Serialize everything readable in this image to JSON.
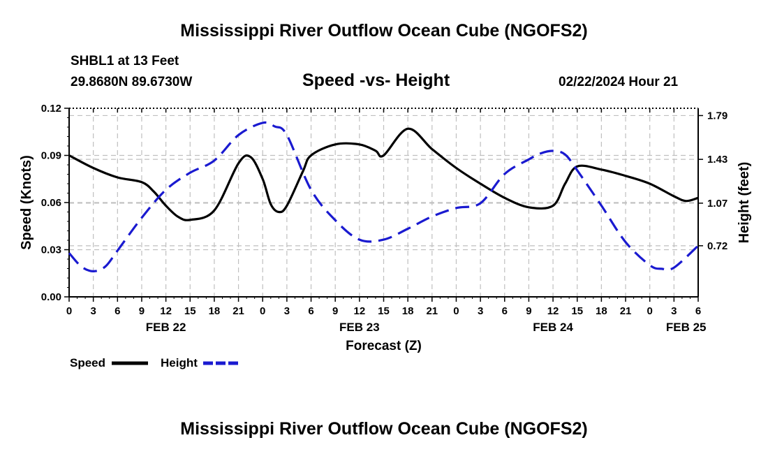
{
  "header": {
    "title": "Mississippi River Outflow Ocean Cube (NGOFS2)",
    "station": "SHBL1 at 13 Feet",
    "coords": "29.8680N  89.6730W",
    "subtitle": "Speed -vs- Height",
    "timestamp": "02/22/2024 Hour 21",
    "footer_title": "Mississippi River Outflow Ocean Cube (NGOFS2)"
  },
  "colors": {
    "speed": "#000000",
    "height": "#1a1ad0",
    "grid": "#bfbfbf"
  },
  "chart_data": {
    "type": "line",
    "title": "Speed -vs- Height",
    "xlabel": "Forecast (Z)",
    "ylabel": "Speed (Knots)",
    "y2label": "Height (feet)",
    "x_unit": "hours since FEB 22 00Z",
    "xlim": [
      0,
      78
    ],
    "x_ticks": [
      0,
      3,
      6,
      9,
      12,
      15,
      18,
      21,
      24,
      27,
      30,
      33,
      36,
      39,
      42,
      45,
      48,
      51,
      54,
      57,
      60,
      63,
      66,
      69,
      72,
      75,
      78
    ],
    "x_tick_labels": [
      "0",
      "3",
      "6",
      "9",
      "12",
      "15",
      "18",
      "21",
      "0",
      "3",
      "6",
      "9",
      "12",
      "15",
      "18",
      "21",
      "0",
      "3",
      "6",
      "9",
      "12",
      "15",
      "18",
      "21",
      "0",
      "3",
      "6"
    ],
    "date_labels": [
      {
        "x": 12,
        "label": "FEB 22"
      },
      {
        "x": 36,
        "label": "FEB 23"
      },
      {
        "x": 60,
        "label": "FEB 24"
      },
      {
        "x": 76.5,
        "label": "FEB 25"
      }
    ],
    "ylim": [
      0,
      0.12
    ],
    "y_ticks": [
      0,
      0.03,
      0.06,
      0.09,
      0.12
    ],
    "y_tick_labels": [
      "0.00",
      "0.03",
      "0.06",
      "0.09",
      "0.12"
    ],
    "y2lim": [
      0.3,
      1.85
    ],
    "y2_ticks": [
      0.72,
      1.07,
      1.43,
      1.79
    ],
    "y2_tick_labels": [
      "0.72",
      "1.07",
      "1.43",
      "1.79"
    ],
    "series": [
      {
        "name": "Speed",
        "axis": "left",
        "style": "solid",
        "x": [
          0,
          3,
          6,
          9,
          10.5,
          12,
          13.5,
          15,
          18,
          21,
          22.5,
          24,
          25,
          26,
          27,
          29,
          30,
          33,
          36,
          38,
          39,
          42,
          45,
          48,
          51,
          54,
          57,
          60,
          61.5,
          63,
          66,
          69,
          72,
          75,
          76.5,
          78
        ],
        "values": [
          0.09,
          0.082,
          0.076,
          0.073,
          0.067,
          0.058,
          0.051,
          0.049,
          0.055,
          0.085,
          0.089,
          0.075,
          0.059,
          0.054,
          0.058,
          0.08,
          0.09,
          0.097,
          0.097,
          0.093,
          0.09,
          0.107,
          0.094,
          0.082,
          0.072,
          0.063,
          0.057,
          0.058,
          0.072,
          0.083,
          0.081,
          0.077,
          0.072,
          0.064,
          0.061,
          0.063
        ]
      },
      {
        "name": "Height",
        "axis": "right",
        "style": "dashed",
        "x": [
          0,
          1.5,
          3,
          4.5,
          6,
          9,
          12,
          15,
          18,
          21,
          24,
          25.5,
          27,
          30,
          33,
          36,
          39,
          42,
          45,
          48,
          51,
          54,
          57,
          58.5,
          60,
          61.5,
          63,
          66,
          69,
          72,
          73.5,
          75,
          78
        ],
        "values": [
          0.66,
          0.55,
          0.51,
          0.55,
          0.68,
          0.95,
          1.18,
          1.32,
          1.42,
          1.63,
          1.73,
          1.7,
          1.63,
          1.18,
          0.93,
          0.77,
          0.77,
          0.86,
          0.96,
          1.03,
          1.07,
          1.31,
          1.43,
          1.48,
          1.5,
          1.47,
          1.34,
          1.05,
          0.75,
          0.56,
          0.53,
          0.54,
          0.72
        ]
      }
    ],
    "legend": [
      {
        "name": "Speed",
        "style": "solid"
      },
      {
        "name": "Height",
        "style": "dashed"
      }
    ],
    "legend_position": "bottom-left",
    "grid": true
  }
}
